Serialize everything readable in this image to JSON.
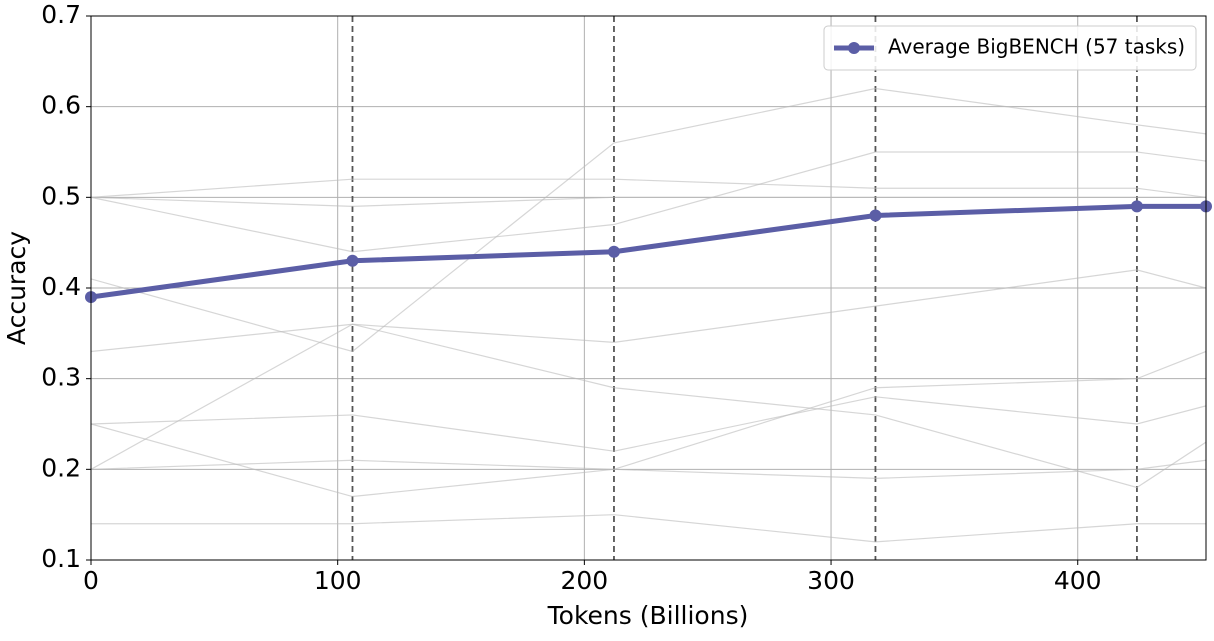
{
  "chart_data": {
    "type": "line",
    "x_label": "Tokens (Billions)",
    "y_label": "Accuracy",
    "x": [
      0,
      106,
      212,
      318,
      424,
      452
    ],
    "xlim": [
      0,
      452
    ],
    "ylim": [
      0.1,
      0.7
    ],
    "xticks": [
      0,
      100,
      200,
      300,
      400
    ],
    "yticks": [
      0.1,
      0.2,
      0.3,
      0.4,
      0.5,
      0.6,
      0.7
    ],
    "grid": true,
    "legend": "upper right",
    "checkpoints": [
      106,
      212,
      318,
      424
    ],
    "series": [
      {
        "color": "#bbbbbb",
        "values": [
          0.5,
          0.52,
          0.52,
          0.51,
          0.51,
          0.5
        ]
      },
      {
        "color": "#bbbbbb",
        "values": [
          0.5,
          0.49,
          0.5,
          0.5,
          0.5,
          0.5
        ]
      },
      {
        "color": "#bbbbbb",
        "values": [
          0.33,
          0.36,
          0.34,
          0.38,
          0.42,
          0.4
        ]
      },
      {
        "color": "#bbbbbb",
        "values": [
          0.25,
          0.26,
          0.22,
          0.28,
          0.25,
          0.27
        ]
      },
      {
        "color": "#bbbbbb",
        "values": [
          0.2,
          0.21,
          0.2,
          0.19,
          0.2,
          0.21
        ]
      },
      {
        "color": "#bbbbbb",
        "values": [
          0.25,
          0.17,
          0.2,
          0.29,
          0.3,
          0.33
        ]
      },
      {
        "color": "#bbbbbb",
        "values": [
          0.14,
          0.14,
          0.15,
          0.12,
          0.14,
          0.14
        ]
      },
      {
        "color": "#bbbbbb",
        "values": [
          0.5,
          0.44,
          0.47,
          0.55,
          0.55,
          0.54
        ]
      },
      {
        "color": "#bbbbbb",
        "values": [
          0.41,
          0.33,
          0.56,
          0.62,
          0.58,
          0.57
        ]
      },
      {
        "color": "#bbbbbb",
        "values": [
          0.2,
          0.36,
          0.29,
          0.26,
          0.18,
          0.23
        ]
      },
      {
        "name": "Average BigBENCH (57 tasks)",
        "color": "#5b5ea6",
        "values": [
          0.39,
          0.43,
          0.44,
          0.48,
          0.49,
          0.49
        ]
      }
    ]
  }
}
